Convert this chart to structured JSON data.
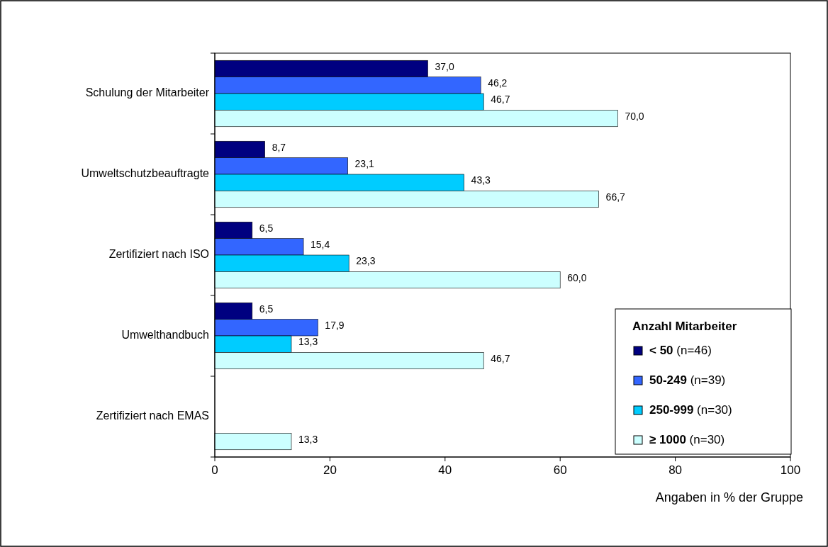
{
  "chart_data": {
    "type": "bar",
    "orientation": "horizontal",
    "xlabel": "Angaben in % der Gruppe",
    "legend_title": "Anzahl Mitarbeiter",
    "legend": "bottom right",
    "grid": false,
    "categories": [
      "Schulung der Mitarbeiter",
      "Umweltschutzbeauftragte",
      "Zertifiziert nach ISO",
      "Umwelthandbuch",
      "Zertifiziert nach EMAS"
    ],
    "xlim": [
      0,
      100
    ],
    "xticks": [
      0,
      20,
      40,
      60,
      80,
      100
    ],
    "series": [
      {
        "name": "< 50 (n=46)",
        "color": "#000080",
        "values": [
          37.0,
          8.7,
          6.5,
          6.5,
          0
        ],
        "value_labels": [
          "37,0",
          "8,7",
          "6,5",
          "6,5",
          null
        ]
      },
      {
        "name": "50-249 (n=39)",
        "color": "#3366ff",
        "values": [
          46.2,
          23.1,
          15.4,
          17.9,
          0
        ],
        "value_labels": [
          "46,2",
          "23,1",
          "15,4",
          "17,9",
          null
        ]
      },
      {
        "name": "250-999 (n=30)",
        "color": "#00ccff",
        "values": [
          46.7,
          43.3,
          23.3,
          13.3,
          0
        ],
        "value_labels": [
          "46,7",
          "43,3",
          "23,3",
          "13,3",
          null
        ]
      },
      {
        "name": "≥ 1000 (n=30)",
        "color": "#ccffff",
        "values": [
          70.0,
          66.7,
          60.0,
          46.7,
          13.3
        ],
        "value_labels": [
          "70,0",
          "66,7",
          "60,0",
          "46,7",
          "13,3"
        ]
      }
    ]
  }
}
